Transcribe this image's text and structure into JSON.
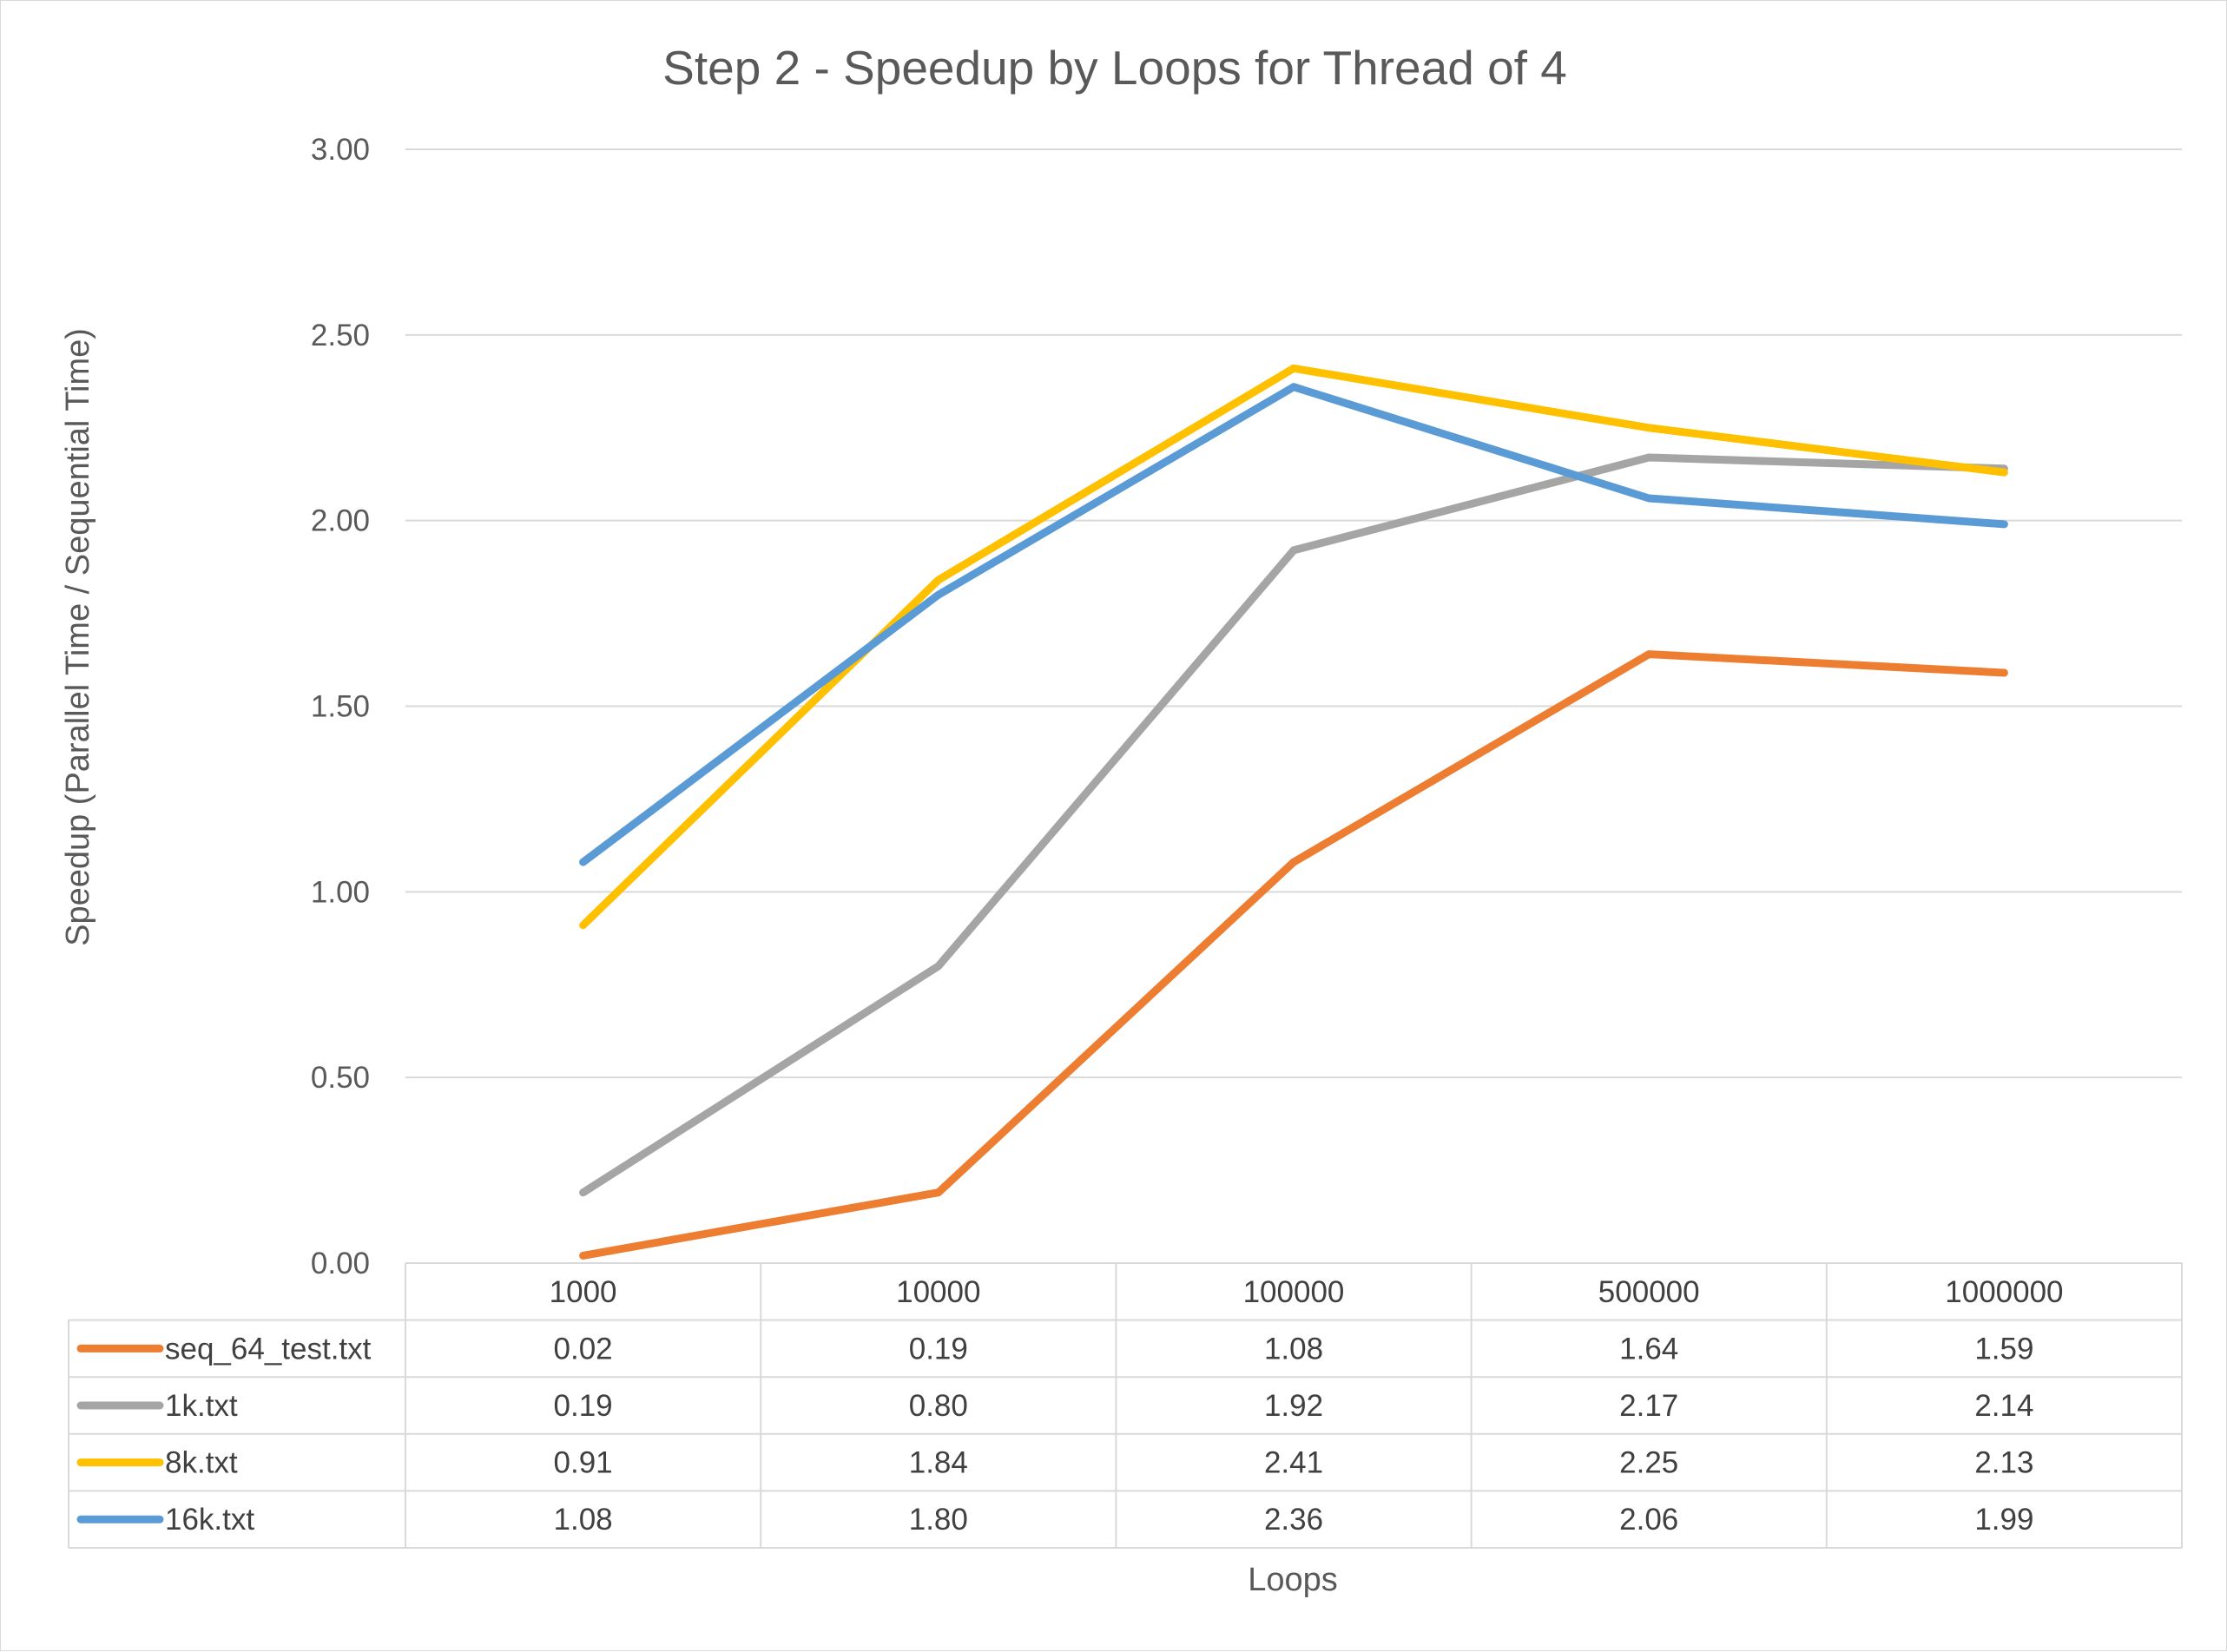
{
  "chart_data": {
    "type": "line",
    "title": "Step 2 - Speedup by Loops for Thread of 4",
    "xlabel": "Loops",
    "ylabel": "Speedup (Parallel Time / Sequential Time)",
    "ylim": [
      0,
      3
    ],
    "ytick_labels": [
      "0.00",
      "0.50",
      "1.00",
      "1.50",
      "2.00",
      "2.50",
      "3.00"
    ],
    "categories": [
      "1000",
      "10000",
      "100000",
      "500000",
      "1000000"
    ],
    "grid": true,
    "legend": "data-table-bottom",
    "series": [
      {
        "name": "seq_64_test.txt",
        "color": "#ED7D31",
        "values": [
          0.02,
          0.19,
          1.08,
          1.64,
          1.59
        ],
        "labels": [
          "0.02",
          "0.19",
          "1.08",
          "1.64",
          "1.59"
        ]
      },
      {
        "name": "1k.txt",
        "color": "#A5A5A5",
        "values": [
          0.19,
          0.8,
          1.92,
          2.17,
          2.14
        ],
        "labels": [
          "0.19",
          "0.80",
          "1.92",
          "2.17",
          "2.14"
        ]
      },
      {
        "name": "8k.txt",
        "color": "#FFC000",
        "values": [
          0.91,
          1.84,
          2.41,
          2.25,
          2.13
        ],
        "labels": [
          "0.91",
          "1.84",
          "2.41",
          "2.25",
          "2.13"
        ]
      },
      {
        "name": "16k.txt",
        "color": "#5B9BD5",
        "values": [
          1.08,
          1.8,
          2.36,
          2.06,
          1.99
        ],
        "labels": [
          "1.08",
          "1.80",
          "2.36",
          "2.06",
          "1.99"
        ]
      }
    ]
  }
}
